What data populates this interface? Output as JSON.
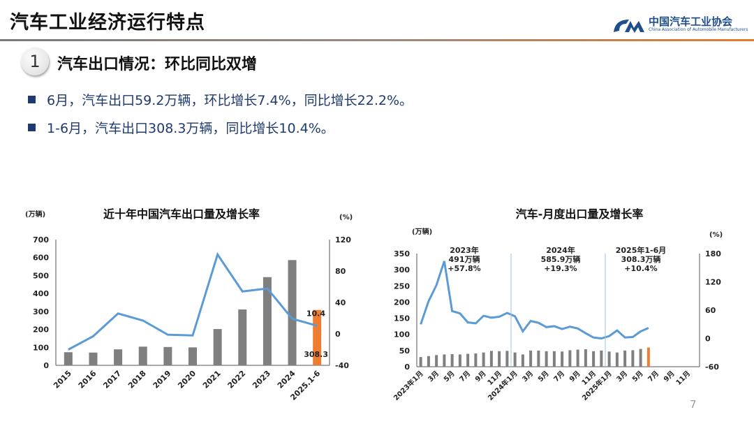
{
  "header": {
    "title": "汽车工业经济运行特点",
    "logo_cn": "中国汽车工业协会",
    "logo_en": "China Association of Automobile Manufacturers"
  },
  "section": {
    "number": "1",
    "title": "汽车出口情况：环比同比双增"
  },
  "bullets": [
    "6月，汽车出口59.2万辆，环比增长7.4%，同比增长22.2%。",
    "1-6月，汽车出口308.3万辆，同比增长10.4%。"
  ],
  "colors": {
    "bar": "#7f7f7f",
    "highlight": "#ed7d31",
    "line": "#5b9bd5",
    "text": "#1f3a6e"
  },
  "page_number": "7",
  "chart_data": [
    {
      "type": "bar+line",
      "title": "近十年中国汽车出口量及增长率",
      "y_unit": "(万辆)",
      "y2_unit": "(%)",
      "categories": [
        "2015",
        "2016",
        "2017",
        "2018",
        "2019",
        "2020",
        "2021",
        "2022",
        "2023",
        "2024",
        "2025.1-6"
      ],
      "ylim": [
        0,
        700
      ],
      "yticks": [
        0,
        100,
        200,
        300,
        400,
        500,
        600,
        700
      ],
      "y2lim": [
        -40,
        120
      ],
      "y2ticks": [
        -40,
        0,
        40,
        80,
        120
      ],
      "series": [
        {
          "type": "bar",
          "values": [
            73,
            71,
            89,
            104,
            102,
            100,
            202,
            311,
            491,
            586,
            308.3
          ]
        },
        {
          "type": "line",
          "axis": "right",
          "values": [
            -20,
            -3,
            26,
            17,
            -1,
            -2,
            101,
            54,
            57.8,
            19.3,
            10.4
          ]
        }
      ],
      "data_labels": {
        "bar_last": "308.3",
        "line_last": "10.4"
      }
    },
    {
      "type": "bar+line",
      "title": "汽车-月度出口量及增长率",
      "y_unit": "(万辆)",
      "y2_unit": "(%)",
      "x_ticks": [
        "2023年1月",
        "3月",
        "5月",
        "7月",
        "9月",
        "11月",
        "2024年1月",
        "3月",
        "5月",
        "7月",
        "9月",
        "11月",
        "2025年1月",
        "3月",
        "5月",
        "7月",
        "9月",
        "11月"
      ],
      "ylim": [
        0,
        350
      ],
      "yticks": [
        0,
        50,
        100,
        150,
        200,
        250,
        300,
        350
      ],
      "y2lim": [
        -60,
        180
      ],
      "y2ticks": [
        -60,
        0,
        60,
        120,
        180
      ],
      "series": [
        {
          "type": "bar",
          "values": [
            30,
            33,
            36,
            38,
            39,
            38,
            40,
            41,
            44,
            49,
            48,
            49,
            44,
            38,
            50,
            50,
            48,
            48,
            47,
            51,
            53,
            54,
            48,
            50,
            47,
            44,
            50,
            51,
            55,
            59.2
          ]
        },
        {
          "type": "line",
          "axis": "right",
          "values": [
            30,
            79,
            113,
            164,
            58,
            53,
            34,
            32,
            48,
            44,
            46,
            54,
            47,
            15,
            37,
            33,
            24,
            26,
            20,
            25,
            21,
            11,
            2,
            0,
            5,
            17,
            2,
            3,
            15,
            22.2
          ]
        }
      ],
      "annotations": [
        [
          "2023年",
          "491万辆",
          "+57.8%"
        ],
        [
          "2024年",
          "585.9万辆",
          "+19.3%"
        ],
        [
          "2025年1-6月",
          "308.3万辆",
          "+10.4%"
        ]
      ]
    }
  ]
}
